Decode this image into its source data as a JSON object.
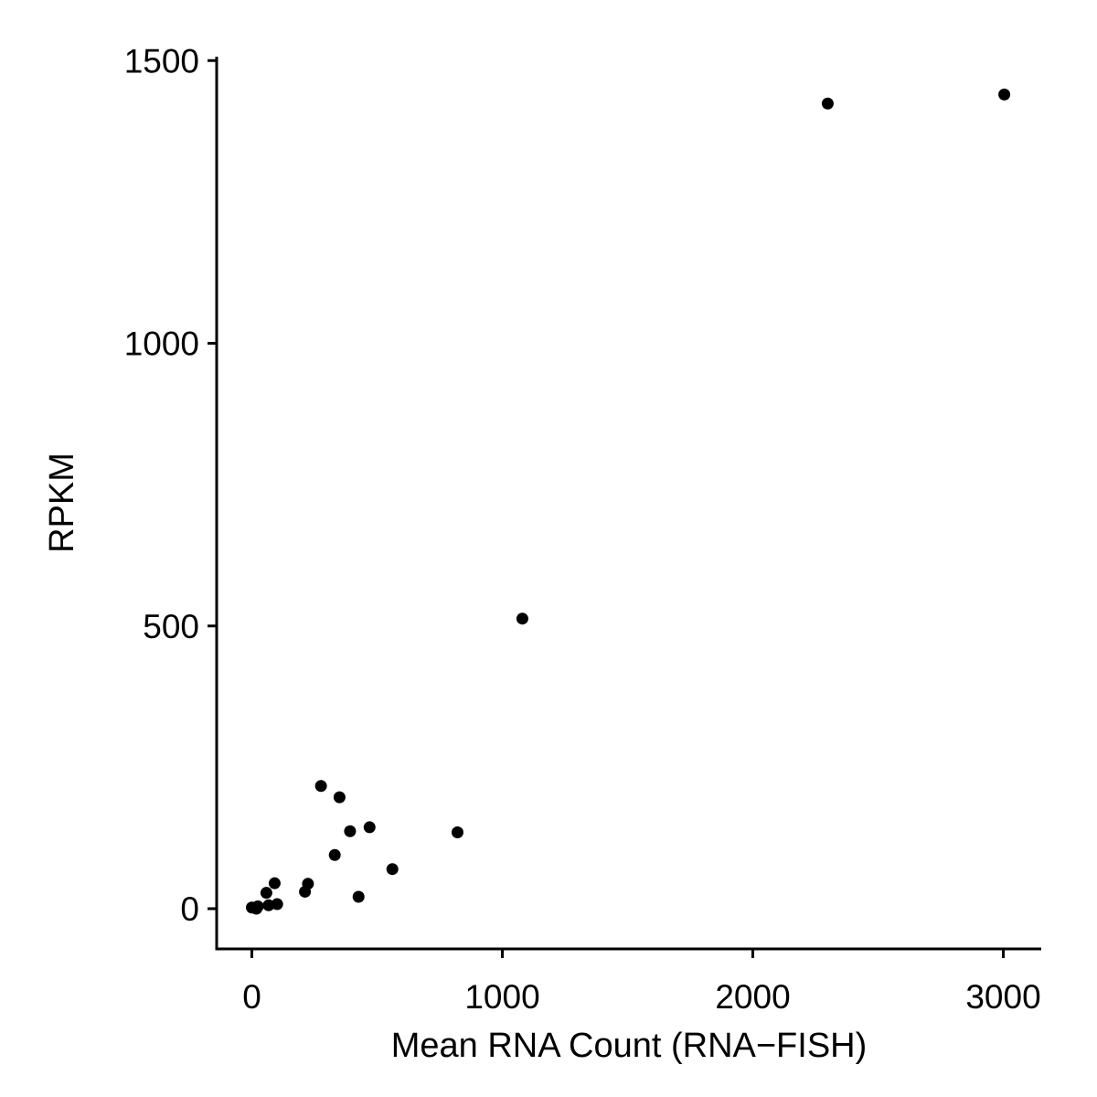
{
  "chart_data": {
    "type": "scatter",
    "title": "",
    "xlabel": "Mean RNA Count (RNA−FISH)",
    "ylabel": "RPKM",
    "xlim": [
      -140,
      3150
    ],
    "ylim": [
      -70,
      1510
    ],
    "xticks": [
      0,
      1000,
      2000,
      3000
    ],
    "yticks": [
      0,
      500,
      1000,
      1500
    ],
    "xtick_labels": [
      "0",
      "1000",
      "2000",
      "3000"
    ],
    "ytick_labels": [
      "0",
      "500",
      "1000",
      "1500"
    ],
    "grid": false,
    "point_color": "#000000",
    "points": [
      {
        "x": 0,
        "y": 2
      },
      {
        "x": 18,
        "y": 0
      },
      {
        "x": 24,
        "y": 4
      },
      {
        "x": 67,
        "y": 6
      },
      {
        "x": 101,
        "y": 8
      },
      {
        "x": 58,
        "y": 28
      },
      {
        "x": 91,
        "y": 45
      },
      {
        "x": 212,
        "y": 30
      },
      {
        "x": 224,
        "y": 44
      },
      {
        "x": 426,
        "y": 21
      },
      {
        "x": 331,
        "y": 95
      },
      {
        "x": 561,
        "y": 70
      },
      {
        "x": 392,
        "y": 137
      },
      {
        "x": 470,
        "y": 144
      },
      {
        "x": 821,
        "y": 135
      },
      {
        "x": 276,
        "y": 217
      },
      {
        "x": 350,
        "y": 197
      },
      {
        "x": 1080,
        "y": 513
      },
      {
        "x": 2299,
        "y": 1424
      },
      {
        "x": 3004,
        "y": 1440
      }
    ]
  }
}
